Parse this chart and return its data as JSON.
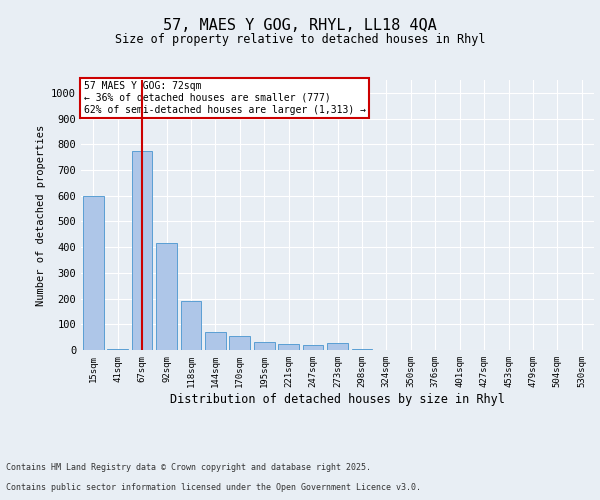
{
  "title_line1": "57, MAES Y GOG, RHYL, LL18 4QA",
  "title_line2": "Size of property relative to detached houses in Rhyl",
  "xlabel": "Distribution of detached houses by size in Rhyl",
  "ylabel": "Number of detached properties",
  "categories": [
    "15sqm",
    "41sqm",
    "67sqm",
    "92sqm",
    "118sqm",
    "144sqm",
    "170sqm",
    "195sqm",
    "221sqm",
    "247sqm",
    "273sqm",
    "298sqm",
    "324sqm",
    "350sqm",
    "376sqm",
    "401sqm",
    "427sqm",
    "453sqm",
    "479sqm",
    "504sqm",
    "530sqm"
  ],
  "values": [
    600,
    5,
    775,
    415,
    190,
    70,
    55,
    30,
    25,
    20,
    28,
    5,
    0,
    0,
    0,
    0,
    0,
    0,
    0,
    0,
    0
  ],
  "bar_color": "#aec6e8",
  "bar_edge_color": "#5a9fd4",
  "red_line_index": 2,
  "red_line_color": "#cc0000",
  "annotation_text": "57 MAES Y GOG: 72sqm\n← 36% of detached houses are smaller (777)\n62% of semi-detached houses are larger (1,313) →",
  "annotation_box_color": "#cc0000",
  "ylim": [
    0,
    1050
  ],
  "yticks": [
    0,
    100,
    200,
    300,
    400,
    500,
    600,
    700,
    800,
    900,
    1000
  ],
  "bg_color": "#e8eef4",
  "plot_bg_color": "#e8eef4",
  "footer_line1": "Contains HM Land Registry data © Crown copyright and database right 2025.",
  "footer_line2": "Contains public sector information licensed under the Open Government Licence v3.0."
}
